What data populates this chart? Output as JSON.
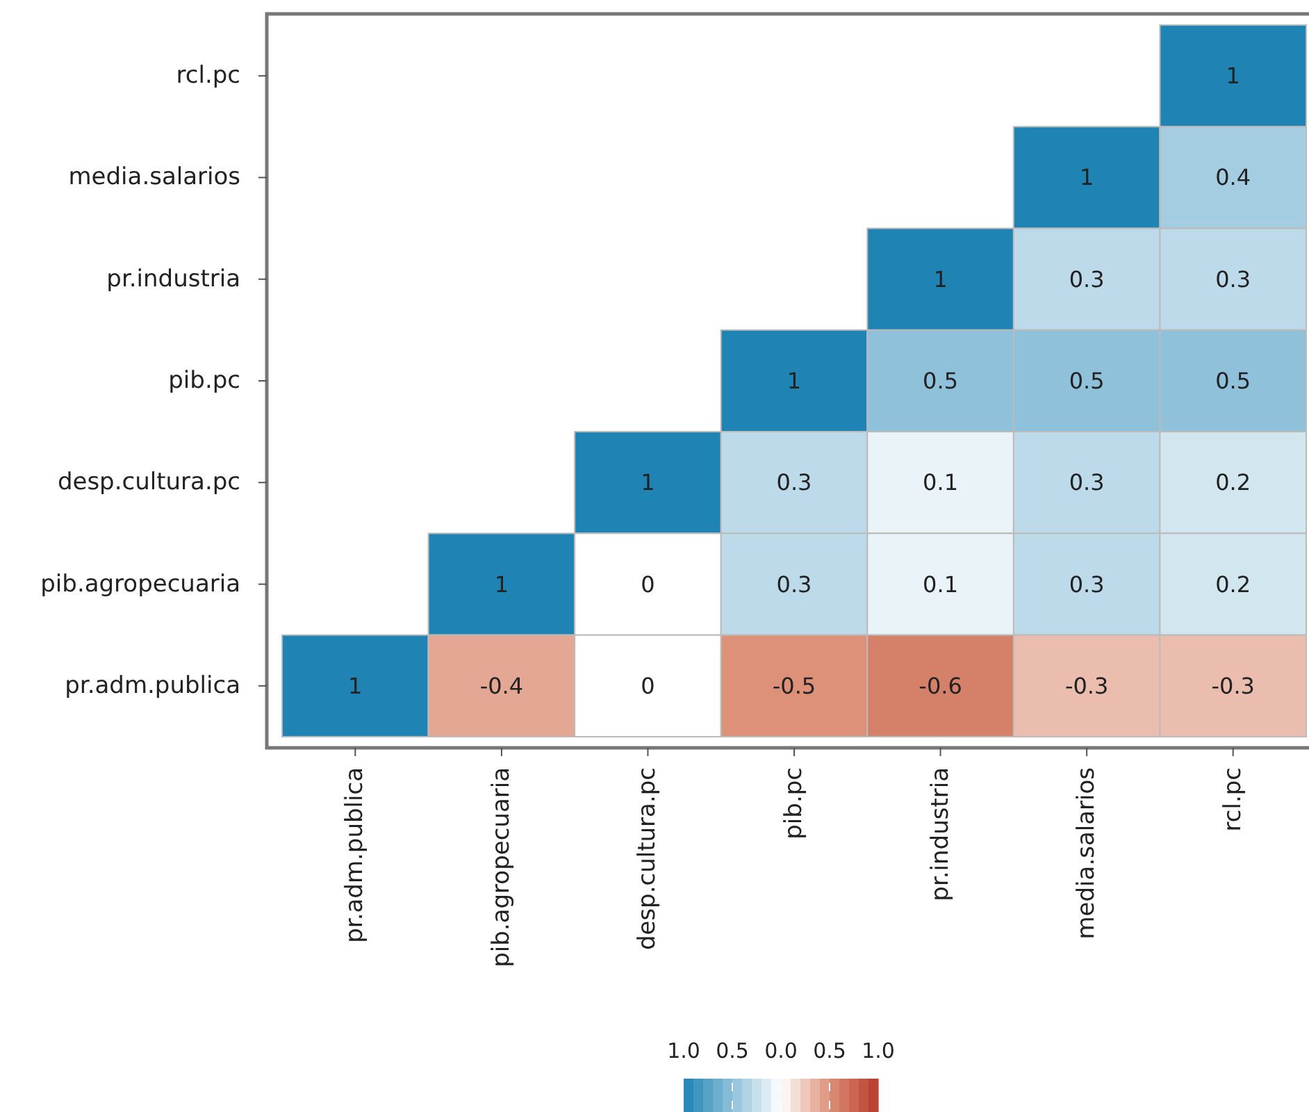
{
  "chart_data": {
    "type": "heatmap",
    "categories": [
      "pr.adm.publica",
      "pib.agropecuaria",
      "desp.cultura.pc",
      "pib.pc",
      "pr.industria",
      "media.salarios",
      "rcl.pc"
    ],
    "y_categories": [
      "rcl.pc",
      "media.salarios",
      "pr.industria",
      "pib.pc",
      "desp.cultura.pc",
      "pib.agropecuaria",
      "pr.adm.publica"
    ],
    "cells": [
      [
        null,
        null,
        null,
        null,
        null,
        null,
        1
      ],
      [
        null,
        null,
        null,
        null,
        null,
        1,
        0.4
      ],
      [
        null,
        null,
        null,
        null,
        1,
        0.3,
        0.3
      ],
      [
        null,
        null,
        null,
        1,
        0.5,
        0.5,
        0.5
      ],
      [
        null,
        null,
        1,
        0.3,
        0.1,
        0.3,
        0.2
      ],
      [
        null,
        1,
        0,
        0.3,
        0.1,
        0.3,
        0.2
      ],
      [
        1,
        -0.4,
        0,
        -0.5,
        -0.6,
        -0.3,
        -0.3
      ]
    ],
    "data_labels": true,
    "clim": [
      1,
      -1
    ],
    "cticks": [
      {
        "value": 1,
        "label": "1.0"
      },
      {
        "value": 0.5,
        "label": "0.5"
      },
      {
        "value": 0,
        "label": "0.0"
      },
      {
        "value": -0.5,
        "label": "0.5"
      },
      {
        "value": -1,
        "label": "1.0"
      }
    ]
  }
}
